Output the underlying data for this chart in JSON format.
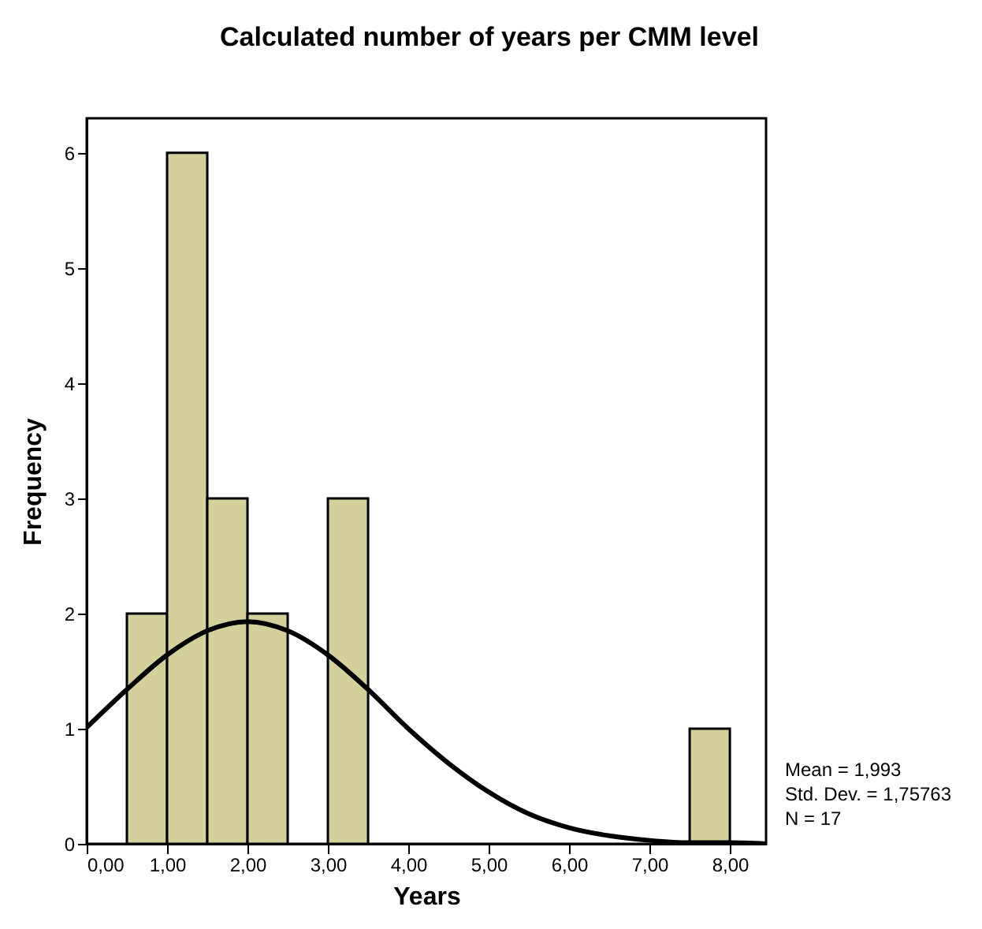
{
  "chart_data": {
    "type": "histogram",
    "title": "Calculated number of years per CMM level",
    "xlabel": "Years",
    "ylabel": "Frequency",
    "bins": [
      0.5,
      1.0,
      1.5,
      2.0,
      2.5,
      3.0,
      3.5,
      4.0,
      4.5,
      5.0,
      5.5,
      6.0,
      6.5,
      7.0,
      7.5,
      8.0
    ],
    "values": [
      2,
      6,
      3,
      2,
      0,
      3,
      0,
      0,
      0,
      0,
      0,
      0,
      0,
      0,
      1
    ],
    "color": "#d3d09c",
    "series": [
      {
        "type": "line",
        "color": "#000000",
        "x": [
          0,
          0.5,
          1.0,
          1.5,
          2.0,
          2.5,
          3.0,
          3.5,
          4.0,
          4.5,
          5.0,
          5.5,
          6.0,
          6.5,
          7.0,
          7.5,
          8.0,
          8.45
        ],
        "values": [
          1.01,
          1.34,
          1.64,
          1.85,
          1.93,
          1.85,
          1.64,
          1.34,
          1.0,
          0.7,
          0.45,
          0.26,
          0.14,
          0.07,
          0.03,
          0.01,
          0.01,
          0.0
        ]
      }
    ],
    "xlim": [
      0,
      8.45
    ],
    "ylim": [
      0,
      6.3
    ],
    "xticks": [
      {
        "value": 0,
        "label": "0,00"
      },
      {
        "value": 1,
        "label": "1,00"
      },
      {
        "value": 2,
        "label": "2,00"
      },
      {
        "value": 3,
        "label": "3,00"
      },
      {
        "value": 4,
        "label": "4,00"
      },
      {
        "value": 5,
        "label": "5,00"
      },
      {
        "value": 6,
        "label": "6,00"
      },
      {
        "value": 7,
        "label": "7,00"
      },
      {
        "value": 8,
        "label": "8,00"
      }
    ],
    "yticks": [
      0,
      1,
      2,
      3,
      4,
      5,
      6
    ],
    "annotations": [
      "Mean = 1,993",
      "Std. Dev. = 1,75763",
      "N = 17"
    ],
    "grid": false
  }
}
